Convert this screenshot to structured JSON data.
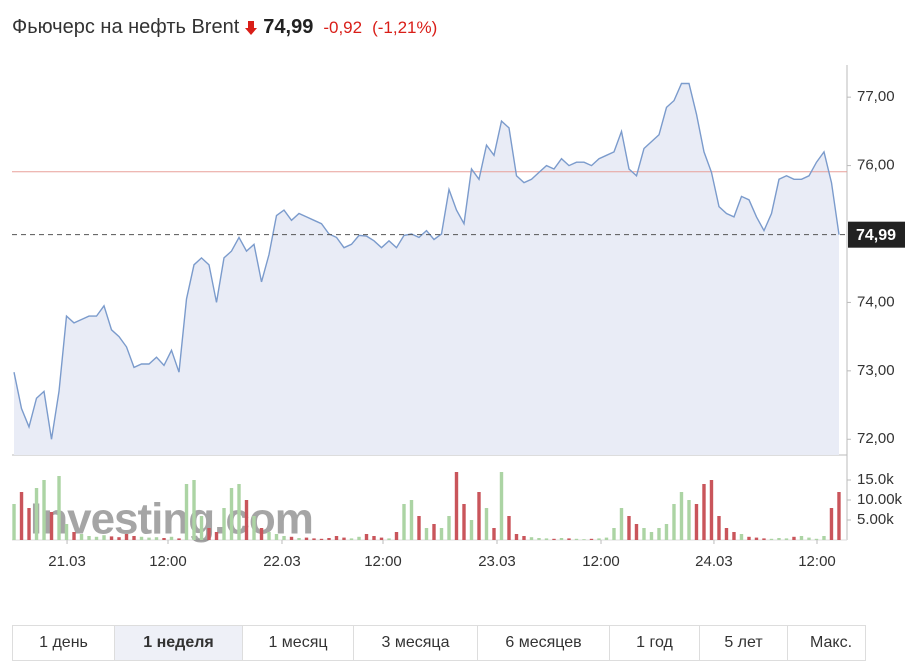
{
  "chart_data": {
    "type": "line",
    "title": "Фьючерс на нефть Brent",
    "last_price": {
      "value": 74.99,
      "label": "74,99"
    },
    "change": {
      "value": -0.92,
      "label": "-0,92"
    },
    "change_pct": {
      "value": -1.21,
      "label": "(-1,21%)"
    },
    "prev_close": 75.91,
    "watermark": "Investing.com",
    "series": [
      {
        "color": "#7b9bcc",
        "fill": "#e9ecf6",
        "values": [
          72.98,
          72.45,
          72.18,
          72.6,
          72.7,
          72.0,
          72.7,
          73.8,
          73.7,
          73.75,
          73.8,
          73.8,
          73.95,
          73.6,
          73.5,
          73.35,
          73.05,
          73.1,
          73.1,
          73.2,
          73.08,
          73.3,
          72.98,
          74.05,
          74.55,
          74.65,
          74.55,
          74.0,
          74.65,
          74.75,
          74.95,
          74.75,
          74.85,
          74.3,
          74.7,
          75.27,
          75.35,
          75.2,
          75.3,
          75.25,
          75.2,
          75.15,
          75.0,
          74.95,
          74.8,
          74.85,
          74.98,
          74.97,
          74.9,
          74.8,
          74.9,
          74.8,
          74.98,
          75.0,
          74.95,
          75.05,
          74.92,
          75.0,
          75.65,
          75.35,
          75.15,
          75.95,
          75.8,
          76.3,
          76.15,
          76.65,
          76.55,
          75.85,
          75.75,
          75.8,
          75.9,
          76.0,
          75.95,
          76.1,
          76.0,
          76.05,
          76.05,
          76.0,
          76.1,
          76.15,
          76.2,
          76.5,
          75.95,
          75.85,
          76.25,
          76.35,
          76.45,
          76.85,
          76.95,
          77.2,
          77.2,
          76.75,
          76.2,
          75.9,
          75.4,
          75.3,
          75.25,
          75.55,
          75.5,
          75.25,
          75.05,
          75.3,
          75.8,
          75.85,
          75.8,
          75.8,
          75.85,
          76.05,
          76.2,
          75.75,
          74.99
        ]
      }
    ],
    "ylim": [
      71.77,
      77.47
    ],
    "yticks": [
      {
        "value": 72,
        "label": "72,00"
      },
      {
        "value": 73,
        "label": "73,00"
      },
      {
        "value": 74,
        "label": "74,00"
      },
      {
        "value": 76,
        "label": "76,00"
      },
      {
        "value": 77,
        "label": "77,00"
      }
    ],
    "xlim": [
      -0.27,
      111.07
    ],
    "xticks": [
      {
        "value": 7.07,
        "label": "21.03"
      },
      {
        "value": 20.53,
        "label": "12:00"
      },
      {
        "value": 35.73,
        "label": "22.03"
      },
      {
        "value": 49.2,
        "label": "12:00"
      },
      {
        "value": 64.4,
        "label": "23.03"
      },
      {
        "value": 78.27,
        "label": "12:00"
      },
      {
        "value": 93.33,
        "label": "24.03"
      },
      {
        "value": 107.07,
        "label": "12:00"
      }
    ],
    "volume": {
      "up_color": "#acd4a4",
      "down_color": "#c9555b",
      "values": [
        9000,
        12000,
        8000,
        13000,
        15000,
        7000,
        16000,
        4000,
        2000,
        1500,
        1000,
        800,
        1200,
        900,
        700,
        1500,
        1000,
        800,
        600,
        700,
        500,
        800,
        400,
        14000,
        15000,
        6000,
        3000,
        2000,
        8000,
        13000,
        14000,
        10000,
        6000,
        3000,
        2000,
        1500,
        1000,
        800,
        500,
        600,
        400,
        300,
        500,
        1000,
        600,
        400,
        800,
        1500,
        1000,
        600,
        400,
        2000,
        9000,
        10000,
        6000,
        3000,
        4000,
        3000,
        6000,
        17000,
        9000,
        5000,
        12000,
        8000,
        3000,
        17000,
        6000,
        1500,
        1000,
        700,
        500,
        400,
        300,
        500,
        400,
        300,
        200,
        300,
        400,
        600,
        3000,
        8000,
        6000,
        4000,
        3000,
        2000,
        3000,
        4000,
        9000,
        12000,
        10000,
        9000,
        14000,
        15000,
        6000,
        3000,
        2000,
        1500,
        800,
        600,
        400,
        300,
        500,
        400,
        800,
        1000,
        600,
        300,
        1000,
        8000,
        12000
      ],
      "ylim": [
        0,
        20750
      ],
      "yticks": [
        {
          "value": 5000,
          "label": "5.00k"
        },
        {
          "value": 10000,
          "label": "10.00k"
        },
        {
          "value": 15000,
          "label": "15.0k"
        }
      ]
    },
    "ranges": [
      "1 день",
      "1 неделя",
      "1 месяц",
      "3 месяца",
      "6 месяцев",
      "1 год",
      "5 лет",
      "Макс."
    ],
    "active_range": 1
  }
}
